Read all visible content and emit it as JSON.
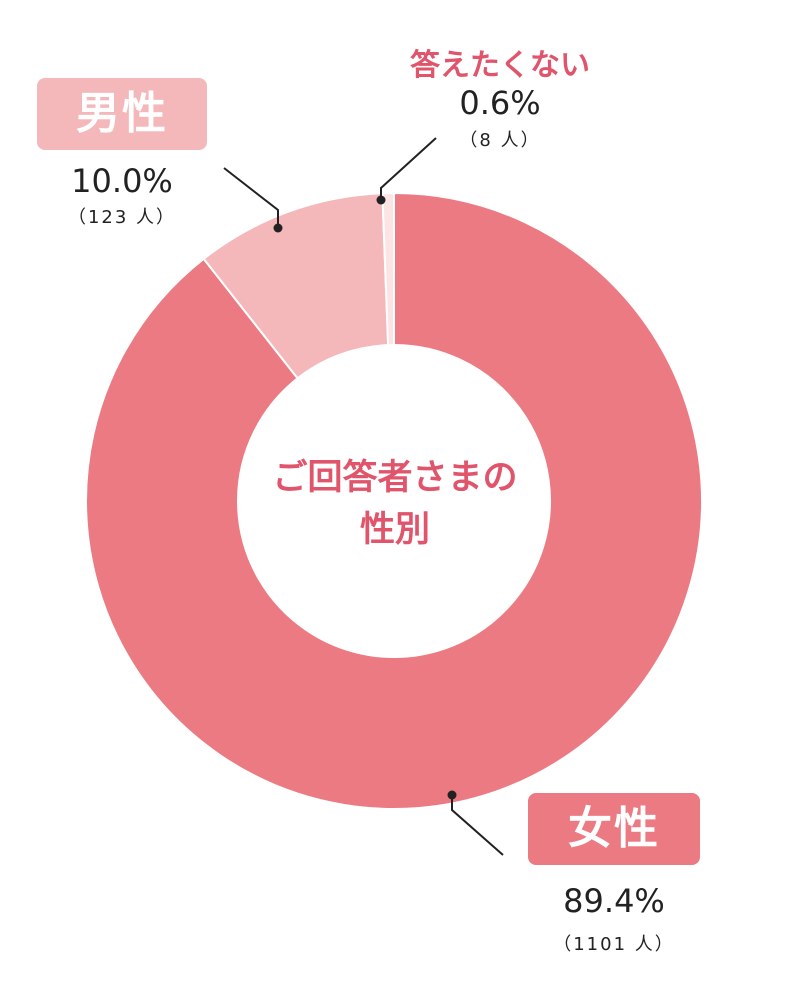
{
  "chart_data": {
    "type": "pie",
    "title": "ご回答者さまの性別",
    "title_lines": [
      "ご回答者さまの",
      "性別"
    ],
    "donut": true,
    "slices": [
      {
        "label": "女性",
        "percent_label": "89.4%",
        "count_label": "（1101 人）",
        "percent": 89.4,
        "count": 1101,
        "color": "#ec7a83"
      },
      {
        "label": "男性",
        "percent_label": "10.0%",
        "count_label": "（123 人）",
        "percent": 10.0,
        "count": 123,
        "color": "#f5b8ba"
      },
      {
        "label": "答えたくない",
        "percent_label": "0.6%",
        "count_label": "（8 人）",
        "percent": 0.6,
        "count": 8,
        "color": "#fce4e4"
      }
    ]
  },
  "colors": {
    "accent": "#e0556b",
    "female_box": "#ec7a83",
    "male_box": "#f5b8ba",
    "leader": "#222222"
  }
}
